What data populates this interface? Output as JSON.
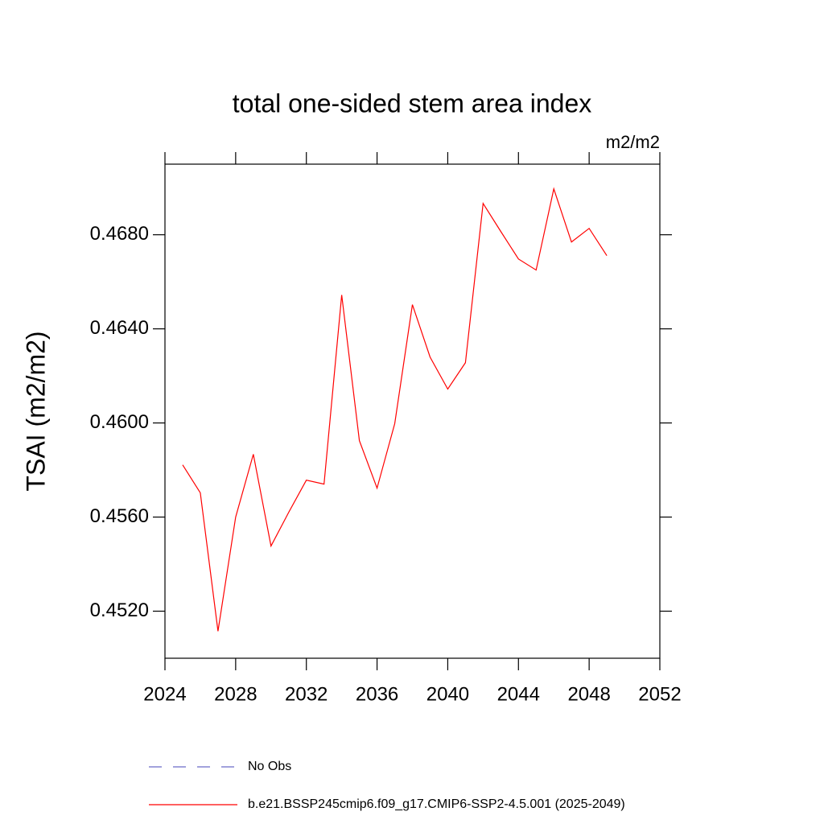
{
  "chart_data": {
    "type": "line",
    "title": "total one-sided stem area index",
    "units": "m2/m2",
    "y_label": "TSAI  (m2/m2)",
    "x": [
      2025,
      2026,
      2027,
      2028,
      2029,
      2030,
      2031,
      2032,
      2033,
      2034,
      2035,
      2036,
      2037,
      2038,
      2039,
      2040,
      2041,
      2042,
      2043,
      2044,
      2045,
      2046,
      2047,
      2048,
      2049
    ],
    "series": [
      {
        "name": "No Obs",
        "color": "#6a6ac8",
        "dash": true,
        "values": [
          null,
          null,
          null,
          null,
          null,
          null,
          null,
          null,
          null,
          null,
          null,
          null,
          null,
          null,
          null,
          null,
          null,
          null,
          null,
          null,
          null,
          null,
          null,
          null,
          null
        ]
      },
      {
        "name": "b.e21.BSSP245cmip6.f09_g17.CMIP6-SSP2-4.5.001 (2025-2049)",
        "color": "#ff0000",
        "dash": false,
        "values": [
          0.45822,
          0.45703,
          0.45115,
          0.456,
          0.45867,
          0.45477,
          0.4562,
          0.45757,
          0.4574,
          0.46544,
          0.45925,
          0.45723,
          0.45997,
          0.46503,
          0.4628,
          0.46144,
          0.46256,
          0.46933,
          0.46814,
          0.46697,
          0.4665,
          0.46995,
          0.46769,
          0.46827,
          0.46711
        ]
      }
    ],
    "xlim": [
      2024,
      2052
    ],
    "xticks": [
      2024,
      2028,
      2032,
      2036,
      2040,
      2044,
      2048,
      2052
    ],
    "ylim": [
      0.45,
      0.471
    ],
    "yticks": [
      {
        "value": 0.452,
        "label": "0.4520"
      },
      {
        "value": 0.456,
        "label": "0.4560"
      },
      {
        "value": 0.46,
        "label": "0.4600"
      },
      {
        "value": 0.464,
        "label": "0.4640"
      },
      {
        "value": 0.468,
        "label": "0.4680"
      }
    ],
    "grid": false
  }
}
